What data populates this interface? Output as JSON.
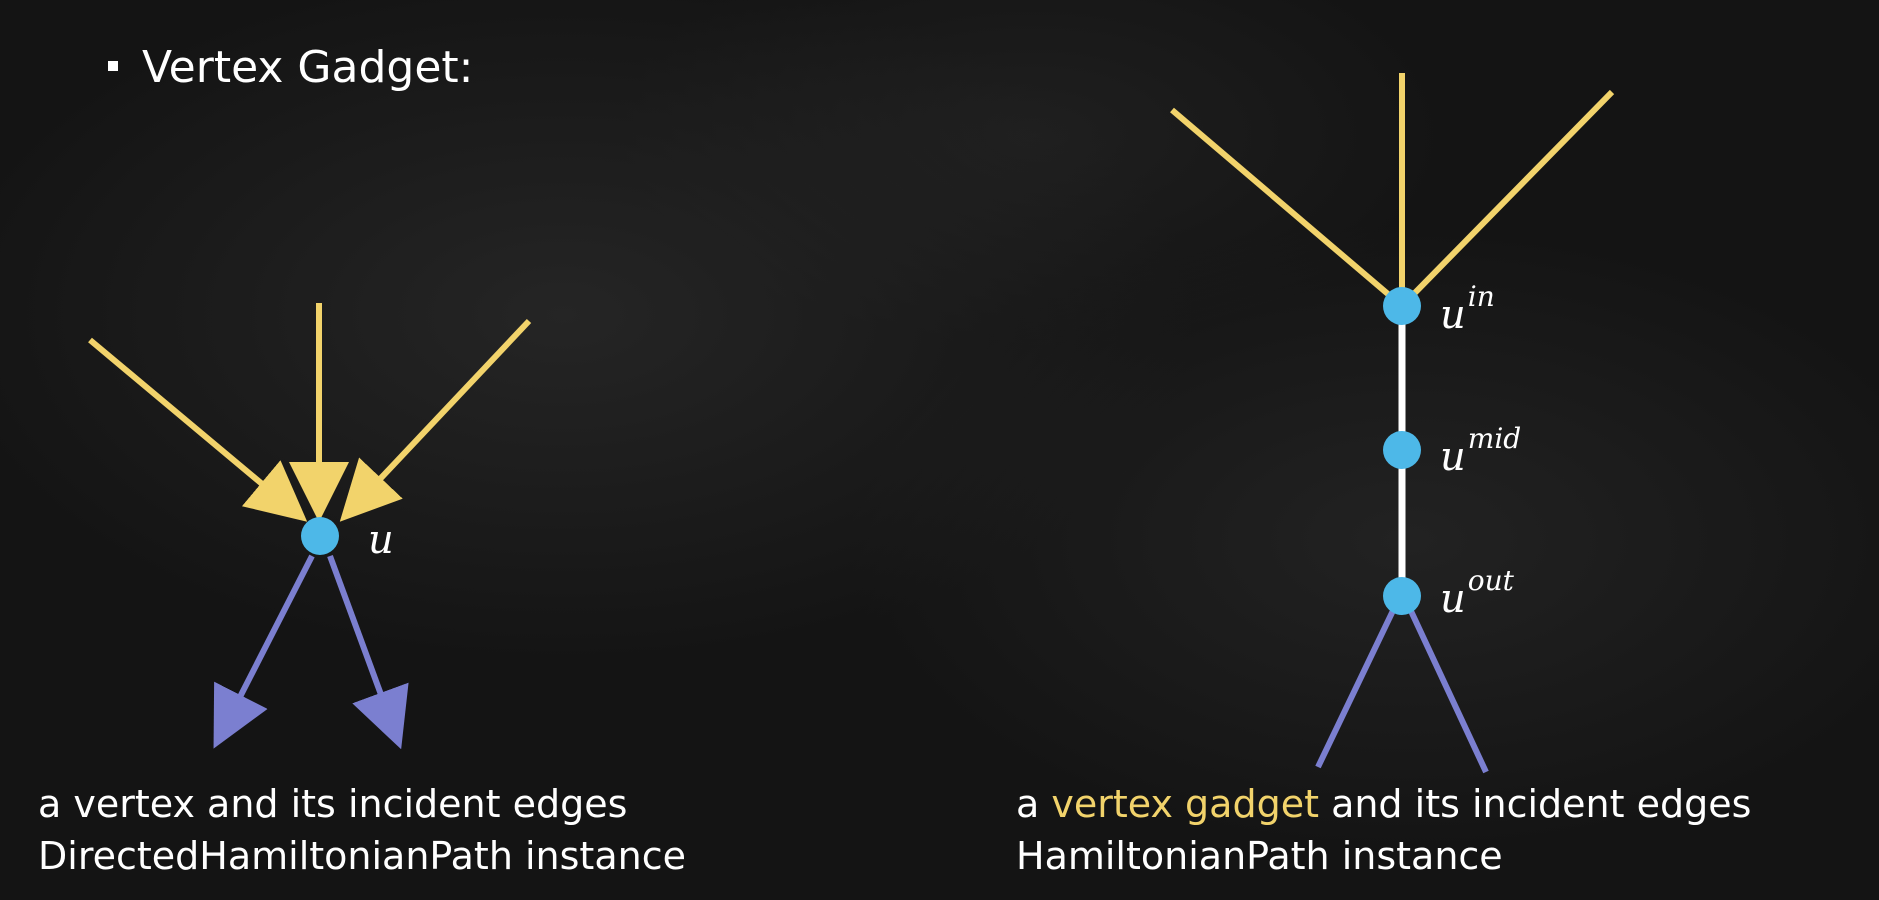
{
  "slide": {
    "bullet_title": "Vertex Gadget:"
  },
  "left_figure": {
    "vertex_label": "u",
    "caption_line1": "a vertex and its incident edges",
    "caption_line2": "DirectedHamiltonianPath instance"
  },
  "right_figure": {
    "label_in_base": "u",
    "label_in_sup": "in",
    "label_mid_base": "u",
    "label_mid_sup": "mid",
    "label_out_base": "u",
    "label_out_sup": "out",
    "caption_line1_prefix": "a ",
    "caption_line1_highlight": "vertex gadget",
    "caption_line1_suffix": " and its incident edges",
    "caption_line2": "HamiltonianPath instance"
  },
  "colors": {
    "incoming_edge": "#f2d36b",
    "outgoing_edge": "#7b7fd0",
    "vertex": "#4db8e8",
    "gadget_edge": "#ffffff",
    "highlight_text": "#f2d36b"
  }
}
